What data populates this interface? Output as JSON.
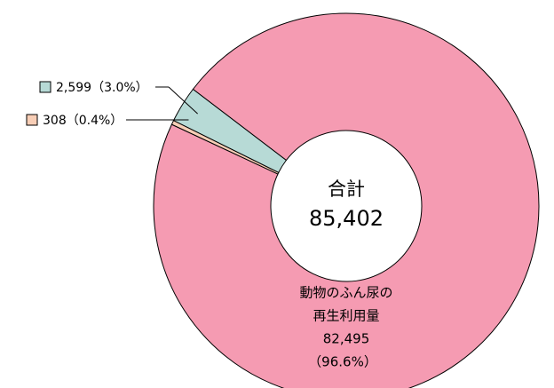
{
  "chart_data": {
    "type": "donut",
    "center_title": "合計",
    "total": 85402,
    "total_label": "85,402",
    "values": [
      82495,
      308,
      2599
    ],
    "value_labels": [
      "82,495",
      "308",
      "2,599"
    ],
    "percent_labels": [
      "（96.6%）",
      "（0.4%）",
      "（3.0%）"
    ],
    "labels": [
      [
        "動物のふん尿の",
        "再生利用量"
      ],
      null,
      null
    ],
    "colors": [
      "#f59bb2",
      "#f8ceb6",
      "#b7dad6"
    ]
  }
}
